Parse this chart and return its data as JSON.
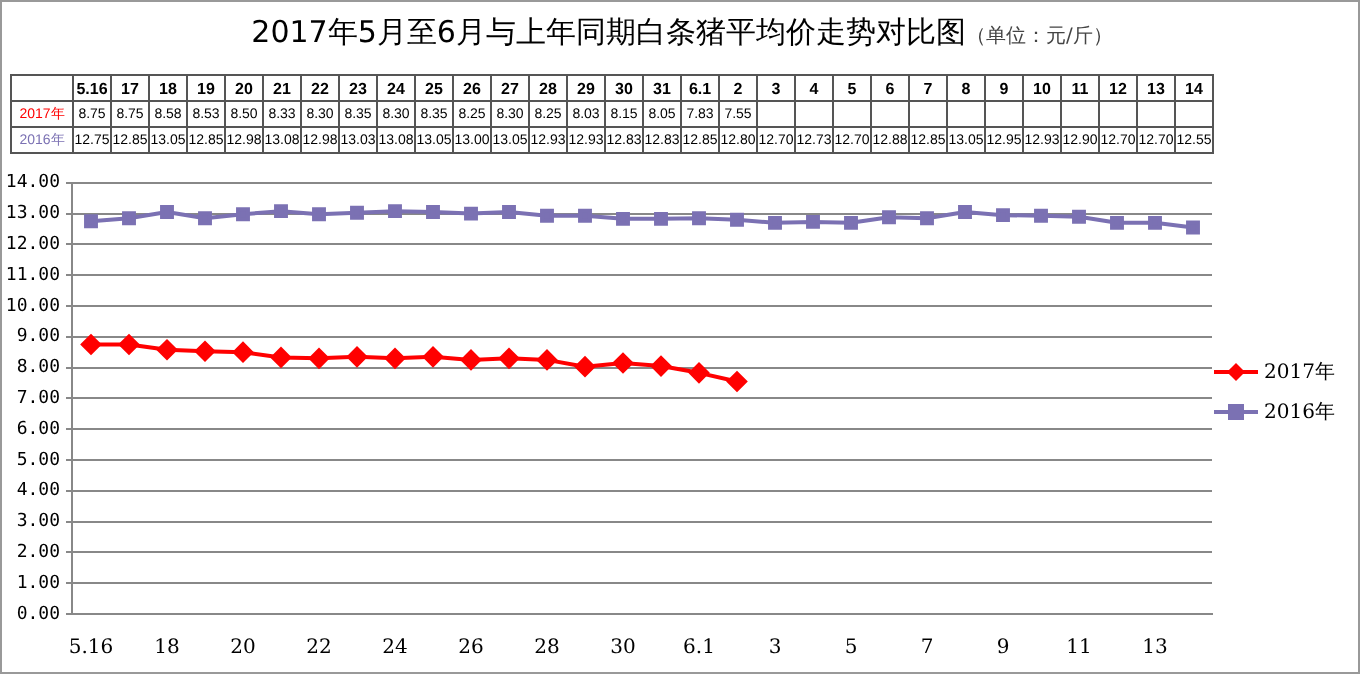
{
  "chart_data": {
    "type": "line",
    "title": "2017年5月至6月与上年同期白条猪平均价走势对比图",
    "subtitle": "（单位：元/斤）",
    "categories": [
      "5.16",
      "17",
      "18",
      "19",
      "20",
      "21",
      "22",
      "23",
      "24",
      "25",
      "26",
      "27",
      "28",
      "29",
      "30",
      "31",
      "6.1",
      "2",
      "3",
      "4",
      "5",
      "6",
      "7",
      "8",
      "9",
      "10",
      "11",
      "12",
      "13",
      "14"
    ],
    "series": [
      {
        "name": "2017年",
        "color": "#ff0000",
        "marker": "diamond",
        "values": [
          8.75,
          8.75,
          8.58,
          8.53,
          8.5,
          8.33,
          8.3,
          8.35,
          8.3,
          8.35,
          8.25,
          8.3,
          8.25,
          8.03,
          8.15,
          8.05,
          7.83,
          7.55,
          null,
          null,
          null,
          null,
          null,
          null,
          null,
          null,
          null,
          null,
          null,
          null
        ],
        "value_labels": [
          "8.75",
          "8.75",
          "8.58",
          "8.53",
          "8.50",
          "8.33",
          "8.30",
          "8.35",
          "8.30",
          "8.35",
          "8.25",
          "8.30",
          "8.25",
          "8.03",
          "8.15",
          "8.05",
          "7.83",
          "7.55",
          null,
          null,
          null,
          null,
          null,
          null,
          null,
          null,
          null,
          null,
          null,
          null
        ]
      },
      {
        "name": "2016年",
        "color": "#7b71b3",
        "marker": "square",
        "values": [
          12.75,
          12.85,
          13.05,
          12.85,
          12.98,
          13.08,
          12.98,
          13.03,
          13.08,
          13.05,
          13.0,
          13.05,
          12.93,
          12.93,
          12.83,
          12.83,
          12.85,
          12.8,
          12.7,
          12.73,
          12.7,
          12.88,
          12.85,
          13.05,
          12.95,
          12.93,
          12.9,
          12.7,
          12.7,
          12.55
        ],
        "value_labels": [
          "12.75",
          "12.85",
          "13.05",
          "12.85",
          "12.98",
          "13.08",
          "12.98",
          "13.03",
          "13.08",
          "13.05",
          "13.00",
          "13.05",
          "12.93",
          "12.93",
          "12.83",
          "12.83",
          "12.85",
          "12.80",
          "12.70",
          "12.73",
          "12.70",
          "12.88",
          "12.85",
          "13.05",
          "12.95",
          "12.93",
          "12.90",
          "12.70",
          "12.70",
          "12.55"
        ]
      }
    ],
    "ylim": [
      0,
      14
    ],
    "yticks": [
      {
        "value": 0,
        "label": "0.00"
      },
      {
        "value": 1,
        "label": "1.00"
      },
      {
        "value": 2,
        "label": "2.00"
      },
      {
        "value": 3,
        "label": "3.00"
      },
      {
        "value": 4,
        "label": "4.00"
      },
      {
        "value": 5,
        "label": "5.00"
      },
      {
        "value": 6,
        "label": "6.00"
      },
      {
        "value": 7,
        "label": "7.00"
      },
      {
        "value": 8,
        "label": "8.00"
      },
      {
        "value": 9,
        "label": "9.00"
      },
      {
        "value": 10,
        "label": "10.00"
      },
      {
        "value": 11,
        "label": "11.00"
      },
      {
        "value": 12,
        "label": "12.00"
      },
      {
        "value": 13,
        "label": "13.00"
      },
      {
        "value": 14,
        "label": "14.00"
      }
    ],
    "grid": "y",
    "legend": "right",
    "line_style": "solid"
  }
}
